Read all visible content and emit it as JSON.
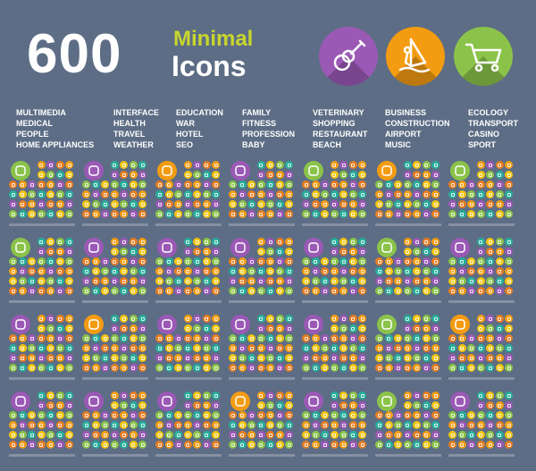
{
  "header": {
    "count": "600",
    "title_line1": "Minimal",
    "title_line2": "Icons"
  },
  "featured_icons": [
    {
      "icon": "guitar-icon",
      "color": "#9b59b6"
    },
    {
      "icon": "windsurfer-icon",
      "color": "#f39c12"
    },
    {
      "icon": "shopping-cart-icon",
      "color": "#8bc34a"
    }
  ],
  "categories": [
    [
      "MULTIMEDIA",
      "MEDICAL",
      "PEOPLE",
      "HOME APPLIANCES"
    ],
    [
      "INTERFACE",
      "HEALTH",
      "TRAVEL",
      "WEATHER"
    ],
    [
      "EDUCATION",
      "WAR",
      "HOTEL",
      "SEO"
    ],
    [
      "FAMILY",
      "FITNESS",
      "PROFESSION",
      "BABY"
    ],
    [
      "VETERINARY",
      "SHOPPING",
      "RESTAURANT",
      "BEACH"
    ],
    [
      "BUSINESS",
      "CONSTRUCTION",
      "AIRPORT",
      "MUSIC"
    ],
    [
      "ECOLOGY",
      "TRANSPORT",
      "CASINO",
      "SPORT"
    ]
  ],
  "palette": [
    "#f39c12",
    "#8bc34a",
    "#9b59b6",
    "#27ae9b",
    "#e67e22",
    "#f1c40f"
  ],
  "icon_groups": [
    {
      "icon": "lightbulb-icon",
      "color": "#8bc34a"
    },
    {
      "icon": "smartphone-icon",
      "color": "#9b59b6"
    },
    {
      "icon": "graduation-cap-icon",
      "color": "#f39c12"
    },
    {
      "icon": "family-icon",
      "color": "#9b59b6"
    },
    {
      "icon": "paw-icon",
      "color": "#8bc34a"
    },
    {
      "icon": "factory-icon",
      "color": "#f39c12"
    },
    {
      "icon": "recycle-icon",
      "color": "#8bc34a"
    },
    {
      "icon": "syringe-icon",
      "color": "#8bc34a"
    },
    {
      "icon": "ambulance-icon",
      "color": "#9b59b6"
    },
    {
      "icon": "gun-icon",
      "color": "#9b59b6"
    },
    {
      "icon": "exercise-bike-icon",
      "color": "#9b59b6"
    },
    {
      "icon": "shopping-bag-icon",
      "color": "#9b59b6"
    },
    {
      "icon": "truck-icon",
      "color": "#8bc34a"
    },
    {
      "icon": "motorcycle-icon",
      "color": "#9b59b6"
    },
    {
      "icon": "hoodie-person-icon",
      "color": "#9b59b6"
    },
    {
      "icon": "beach-umbrella-icon",
      "color": "#f39c12"
    },
    {
      "icon": "hotel-building-icon",
      "color": "#9b59b6"
    },
    {
      "icon": "worker-icon",
      "color": "#9b59b6"
    },
    {
      "icon": "cupcake-icon",
      "color": "#9b59b6"
    },
    {
      "icon": "airplane-icon",
      "color": "#8bc34a"
    },
    {
      "icon": "playing-card-icon",
      "color": "#f39c12"
    },
    {
      "icon": "vacuum-cleaner-icon",
      "color": "#9b59b6"
    },
    {
      "icon": "cloud-sun-icon",
      "color": "#9b59b6"
    },
    {
      "icon": "network-icon",
      "color": "#9b59b6"
    },
    {
      "icon": "rubber-duck-icon",
      "color": "#f39c12"
    },
    {
      "icon": "flip-flops-icon",
      "color": "#9b59b6"
    },
    {
      "icon": "acoustic-guitar-icon",
      "color": "#8bc34a"
    },
    {
      "icon": "tennis-racket-icon",
      "color": "#9b59b6"
    }
  ]
}
